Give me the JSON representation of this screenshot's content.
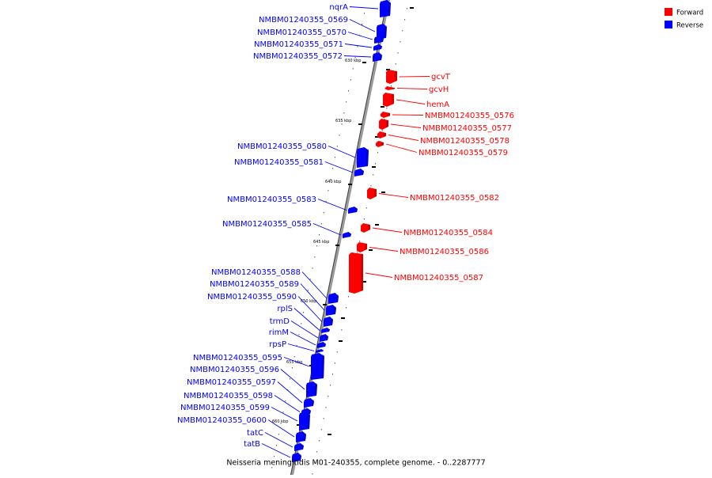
{
  "legend": {
    "forward": {
      "label": "Forward",
      "color": "#ff0000"
    },
    "reverse": {
      "label": "Reverse",
      "color": "#0000ff"
    }
  },
  "caption": "Neisseria meningitidis M01-240355, complete genome. - 0..2287777",
  "scale_labels": [
    "630 kbp",
    "635 kbp",
    "640 kbp",
    "645 kbp",
    "650 kbp",
    "655 kbp",
    "660 kbp"
  ],
  "genes": [
    {
      "name": "nqrA",
      "strand": "reverse"
    },
    {
      "name": "NMBM01240355_0569",
      "strand": "reverse"
    },
    {
      "name": "NMBM01240355_0570",
      "strand": "reverse"
    },
    {
      "name": "NMBM01240355_0571",
      "strand": "reverse"
    },
    {
      "name": "NMBM01240355_0572",
      "strand": "reverse"
    },
    {
      "name": "gcvT",
      "strand": "forward"
    },
    {
      "name": "gcvH",
      "strand": "forward"
    },
    {
      "name": "hemA",
      "strand": "forward"
    },
    {
      "name": "NMBM01240355_0576",
      "strand": "forward"
    },
    {
      "name": "NMBM01240355_0577",
      "strand": "forward"
    },
    {
      "name": "NMBM01240355_0578",
      "strand": "forward"
    },
    {
      "name": "NMBM01240355_0579",
      "strand": "forward"
    },
    {
      "name": "NMBM01240355_0580",
      "strand": "reverse"
    },
    {
      "name": "NMBM01240355_0581",
      "strand": "reverse"
    },
    {
      "name": "NMBM01240355_0582",
      "strand": "forward"
    },
    {
      "name": "NMBM01240355_0583",
      "strand": "reverse"
    },
    {
      "name": "NMBM01240355_0584",
      "strand": "forward"
    },
    {
      "name": "NMBM01240355_0585",
      "strand": "reverse"
    },
    {
      "name": "NMBM01240355_0586",
      "strand": "forward"
    },
    {
      "name": "NMBM01240355_0587",
      "strand": "forward"
    },
    {
      "name": "NMBM01240355_0588",
      "strand": "reverse"
    },
    {
      "name": "NMBM01240355_0589",
      "strand": "reverse"
    },
    {
      "name": "NMBM01240355_0590",
      "strand": "reverse"
    },
    {
      "name": "rplS",
      "strand": "reverse"
    },
    {
      "name": "trmD",
      "strand": "reverse"
    },
    {
      "name": "rimM",
      "strand": "reverse"
    },
    {
      "name": "rpsP",
      "strand": "reverse"
    },
    {
      "name": "NMBM01240355_0595",
      "strand": "reverse"
    },
    {
      "name": "NMBM01240355_0596",
      "strand": "reverse"
    },
    {
      "name": "NMBM01240355_0597",
      "strand": "reverse"
    },
    {
      "name": "NMBM01240355_0598",
      "strand": "reverse"
    },
    {
      "name": "NMBM01240355_0599",
      "strand": "reverse"
    },
    {
      "name": "NMBM01240355_0600",
      "strand": "reverse"
    },
    {
      "name": "tatC",
      "strand": "reverse"
    },
    {
      "name": "tatB",
      "strand": "reverse"
    }
  ]
}
